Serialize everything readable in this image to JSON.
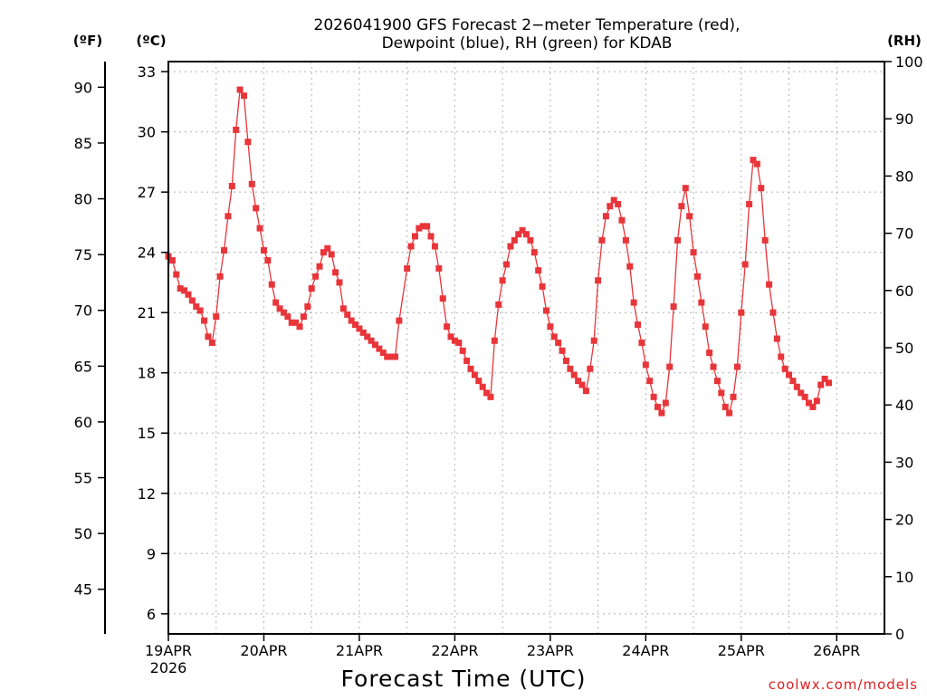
{
  "chart_data": {
    "type": "line",
    "title": "2026041900 GFS Forecast 2-meter Temperature (red), Dewpoint (blue), RH (green) for KDAB",
    "title_lines": [
      "2026041900 GFS Forecast 2−meter Temperature (red),",
      "Dewpoint (blue), RH (green) for KDAB"
    ],
    "xlabel": "Forecast Time (UTC)",
    "credit": "coolwx.com/models",
    "x_range_hours": [
      0,
      180
    ],
    "x_ticks": [
      {
        "hour": 0,
        "label": "19APR",
        "sublabel": "2026"
      },
      {
        "hour": 24,
        "label": "20APR"
      },
      {
        "hour": 48,
        "label": "21APR"
      },
      {
        "hour": 72,
        "label": "22APR"
      },
      {
        "hour": 96,
        "label": "23APR"
      },
      {
        "hour": 120,
        "label": "24APR"
      },
      {
        "hour": 144,
        "label": "25APR"
      },
      {
        "hour": 168,
        "label": "26APR"
      }
    ],
    "y_left_c": {
      "unit": "(ºC)",
      "range": [
        5,
        33.5
      ],
      "ticks": [
        6,
        9,
        12,
        15,
        18,
        21,
        24,
        27,
        30,
        33
      ]
    },
    "y_left_f": {
      "unit": "(ºF)",
      "ticks": [
        45,
        50,
        55,
        60,
        65,
        70,
        75,
        80,
        85,
        90
      ]
    },
    "y_right": {
      "unit": "(RH)",
      "range": [
        0,
        100
      ],
      "ticks": [
        0,
        10,
        20,
        30,
        40,
        50,
        60,
        70,
        80,
        90,
        100
      ]
    },
    "series": [
      {
        "name": "Temperature",
        "unit": "C",
        "color": "#e8353a",
        "marker": "filled-square",
        "points": [
          [
            0,
            23.8
          ],
          [
            1,
            23.6
          ],
          [
            2,
            22.9
          ],
          [
            3,
            22.2
          ],
          [
            4,
            22.1
          ],
          [
            5,
            21.9
          ],
          [
            6,
            21.6
          ],
          [
            7,
            21.3
          ],
          [
            8,
            21.1
          ],
          [
            9,
            20.6
          ],
          [
            10,
            19.8
          ],
          [
            11,
            19.5
          ],
          [
            12,
            20.8
          ],
          [
            13,
            22.8
          ],
          [
            14,
            24.1
          ],
          [
            15,
            25.8
          ],
          [
            16,
            27.3
          ],
          [
            17,
            30.1
          ],
          [
            18,
            32.1
          ],
          [
            19,
            31.8
          ],
          [
            20,
            29.5
          ],
          [
            21,
            27.4
          ],
          [
            22,
            26.2
          ],
          [
            23,
            25.2
          ],
          [
            24,
            24.1
          ],
          [
            25,
            23.6
          ],
          [
            26,
            22.4
          ],
          [
            27,
            21.5
          ],
          [
            28,
            21.2
          ],
          [
            29,
            21.0
          ],
          [
            30,
            20.8
          ],
          [
            31,
            20.5
          ],
          [
            32,
            20.5
          ],
          [
            33,
            20.3
          ],
          [
            34,
            20.8
          ],
          [
            35,
            21.3
          ],
          [
            36,
            22.2
          ],
          [
            37,
            22.8
          ],
          [
            38,
            23.3
          ],
          [
            39,
            24.0
          ],
          [
            40,
            24.2
          ],
          [
            41,
            23.9
          ],
          [
            42,
            23.0
          ],
          [
            43,
            22.5
          ],
          [
            44,
            21.2
          ],
          [
            45,
            20.9
          ],
          [
            46,
            20.6
          ],
          [
            47,
            20.4
          ],
          [
            48,
            20.2
          ],
          [
            49,
            20.0
          ],
          [
            50,
            19.8
          ],
          [
            51,
            19.6
          ],
          [
            52,
            19.4
          ],
          [
            53,
            19.2
          ],
          [
            54,
            19.0
          ],
          [
            55,
            18.8
          ],
          [
            56,
            18.8
          ],
          [
            57,
            18.8
          ],
          [
            58,
            20.6
          ],
          [
            60,
            23.2
          ],
          [
            61,
            24.3
          ],
          [
            62,
            24.8
          ],
          [
            63,
            25.2
          ],
          [
            64,
            25.3
          ],
          [
            65,
            25.3
          ],
          [
            66,
            24.8
          ],
          [
            67,
            24.3
          ],
          [
            68,
            23.2
          ],
          [
            69,
            21.7
          ],
          [
            70,
            20.3
          ],
          [
            71,
            19.8
          ],
          [
            72,
            19.6
          ],
          [
            73,
            19.5
          ],
          [
            74,
            19.1
          ],
          [
            75,
            18.6
          ],
          [
            76,
            18.2
          ],
          [
            77,
            17.9
          ],
          [
            78,
            17.6
          ],
          [
            79,
            17.3
          ],
          [
            80,
            17.0
          ],
          [
            81,
            16.8
          ],
          [
            82,
            19.6
          ],
          [
            83,
            21.4
          ],
          [
            84,
            22.6
          ],
          [
            85,
            23.4
          ],
          [
            86,
            24.3
          ],
          [
            87,
            24.6
          ],
          [
            88,
            24.9
          ],
          [
            89,
            25.1
          ],
          [
            90,
            24.9
          ],
          [
            91,
            24.6
          ],
          [
            92,
            24.0
          ],
          [
            93,
            23.1
          ],
          [
            94,
            22.3
          ],
          [
            95,
            21.1
          ],
          [
            96,
            20.3
          ],
          [
            97,
            19.8
          ],
          [
            98,
            19.5
          ],
          [
            99,
            19.1
          ],
          [
            100,
            18.6
          ],
          [
            101,
            18.2
          ],
          [
            102,
            17.9
          ],
          [
            103,
            17.6
          ],
          [
            104,
            17.4
          ],
          [
            105,
            17.1
          ],
          [
            106,
            18.2
          ],
          [
            107,
            19.6
          ],
          [
            108,
            22.6
          ],
          [
            109,
            24.6
          ],
          [
            110,
            25.8
          ],
          [
            111,
            26.3
          ],
          [
            112,
            26.6
          ],
          [
            113,
            26.4
          ],
          [
            114,
            25.6
          ],
          [
            115,
            24.6
          ],
          [
            116,
            23.3
          ],
          [
            117,
            21.5
          ],
          [
            118,
            20.4
          ],
          [
            119,
            19.5
          ],
          [
            120,
            18.4
          ],
          [
            121,
            17.6
          ],
          [
            122,
            16.8
          ],
          [
            123,
            16.3
          ],
          [
            124,
            16.0
          ],
          [
            125,
            16.5
          ],
          [
            126,
            18.3
          ],
          [
            127,
            21.3
          ],
          [
            128,
            24.6
          ],
          [
            129,
            26.3
          ],
          [
            130,
            27.2
          ],
          [
            131,
            25.8
          ],
          [
            132,
            24.0
          ],
          [
            133,
            22.8
          ],
          [
            134,
            21.5
          ],
          [
            135,
            20.3
          ],
          [
            136,
            19.0
          ],
          [
            137,
            18.3
          ],
          [
            138,
            17.6
          ],
          [
            139,
            17.0
          ],
          [
            140,
            16.3
          ],
          [
            141,
            16.0
          ],
          [
            142,
            16.8
          ],
          [
            143,
            18.3
          ],
          [
            144,
            21.0
          ],
          [
            145,
            23.4
          ],
          [
            146,
            26.4
          ],
          [
            147,
            28.6
          ],
          [
            148,
            28.4
          ],
          [
            149,
            27.2
          ],
          [
            150,
            24.6
          ],
          [
            151,
            22.4
          ],
          [
            152,
            21.0
          ],
          [
            153,
            19.7
          ],
          [
            154,
            18.8
          ],
          [
            155,
            18.2
          ],
          [
            156,
            17.9
          ],
          [
            157,
            17.6
          ],
          [
            158,
            17.3
          ],
          [
            159,
            17.0
          ],
          [
            160,
            16.8
          ],
          [
            161,
            16.5
          ],
          [
            162,
            16.3
          ],
          [
            163,
            16.6
          ],
          [
            164,
            17.4
          ],
          [
            165,
            17.7
          ],
          [
            166,
            17.5
          ]
        ]
      }
    ]
  }
}
